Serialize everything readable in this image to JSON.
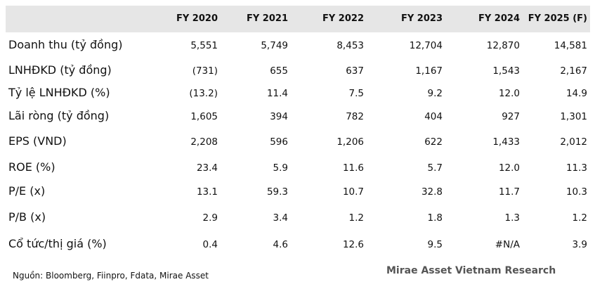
{
  "table": {
    "header": [
      "FY 2020",
      "FY 2021",
      "FY 2022",
      "FY 2023",
      "FY 2024",
      "FY 2025 (F)"
    ],
    "rows": [
      [
        "Doanh thu (tỷ đồng)",
        "5,551",
        "5,749",
        "8,453",
        "12,704",
        "12,870",
        "14,581"
      ],
      [
        "LNHĐKD (tỷ đồng)",
        "(731)",
        "655",
        "637",
        "1,167",
        "1,543",
        "2,167"
      ],
      [
        "Tỷ lệ LNHĐKD (%)",
        "(13.2)",
        "11.4",
        "7.5",
        "9.2",
        "12.0",
        "14.9"
      ],
      [
        "Lãi ròng (tỷ đồng)",
        "1,605",
        "394",
        "782",
        "404",
        "927",
        "1,301"
      ],
      [
        "EPS (VND)",
        "2,208",
        "596",
        "1,206",
        "622",
        "1,433",
        "2,012"
      ],
      [
        "ROE (%)",
        "23.4",
        "5.9",
        "11.6",
        "5.7",
        "12.0",
        "11.3"
      ],
      [
        "P/E (x)",
        "13.1",
        "59.3",
        "10.7",
        "32.8",
        "11.7",
        "10.3"
      ],
      [
        "P/B (x)",
        "2.9",
        "3.4",
        "1.2",
        "1.8",
        "1.3",
        "1.2"
      ],
      [
        "Cổ tức/thị giá (%)",
        "0.4",
        "4.6",
        "12.6",
        "9.5",
        "#N/A",
        "3.9"
      ]
    ]
  },
  "footer": {
    "source": "Nguồn: Bloomberg, Fiinpro, Fdata, Mirae Asset",
    "brand": "Mirae Asset Vietnam Research"
  }
}
